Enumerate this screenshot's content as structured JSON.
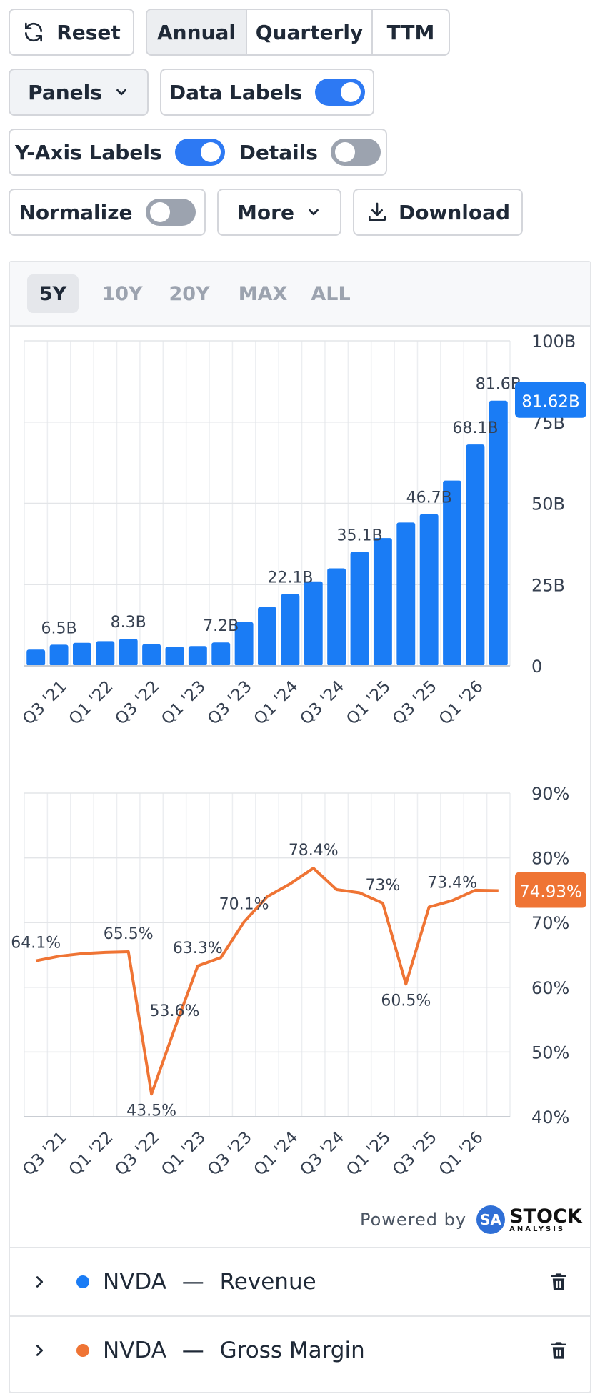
{
  "toolbar": {
    "reset_label": "Reset",
    "period_options": [
      "Annual",
      "Quarterly",
      "TTM"
    ],
    "panels_label": "Panels",
    "data_labels_label": "Data Labels",
    "data_labels_on": true,
    "y_axis_labels_label": "Y-Axis Labels",
    "y_axis_labels_on": true,
    "details_label": "Details",
    "details_on": false,
    "normalize_label": "Normalize",
    "normalize_on": false,
    "more_label": "More",
    "download_label": "Download"
  },
  "ranges": [
    "5Y",
    "10Y",
    "20Y",
    "MAX",
    "ALL"
  ],
  "active_range": "5Y",
  "powered_by": "Powered by",
  "brand": {
    "badge": "SA",
    "name": "STOCK",
    "sub": "ANALYSIS"
  },
  "legend": [
    {
      "ticker": "NVDA",
      "sep": "—",
      "metric": "Revenue",
      "color": "#1a7cf5"
    },
    {
      "ticker": "NVDA",
      "sep": "—",
      "metric": "Gross Margin",
      "color": "#ef7434"
    }
  ],
  "chart_data": [
    {
      "type": "bar",
      "series_name": "Revenue",
      "color": "#1a7cf5",
      "categories": [
        "Q2 '21",
        "Q3 '21",
        "Q4 '21",
        "Q1 '22",
        "Q2 '22",
        "Q3 '22",
        "Q4 '22",
        "Q1 '23",
        "Q2 '23",
        "Q3 '23",
        "Q4 '23",
        "Q1 '24",
        "Q2 '24",
        "Q3 '24",
        "Q4 '24",
        "Q1 '25",
        "Q2 '25",
        "Q3 '25",
        "Q4 '25",
        "Q1 '26",
        "Q2 '26"
      ],
      "values": [
        5.0,
        6.5,
        7.1,
        7.6,
        8.3,
        6.7,
        5.9,
        6.1,
        7.2,
        13.5,
        18.1,
        22.1,
        26.0,
        30.0,
        35.1,
        39.3,
        44.1,
        46.7,
        57.0,
        68.1,
        81.6
      ],
      "x_tick_labels": [
        "Q3 '21",
        "Q1 '22",
        "Q3 '22",
        "Q1 '23",
        "Q3 '23",
        "Q1 '24",
        "Q3 '24",
        "Q1 '25",
        "Q3 '25",
        "Q1 '26"
      ],
      "y_ticks": [
        "0",
        "25B",
        "50B",
        "75B",
        "100B"
      ],
      "ylim": [
        0,
        100
      ],
      "data_labels": [
        {
          "index": 1,
          "text": "6.5B"
        },
        {
          "index": 4,
          "text": "8.3B"
        },
        {
          "index": 8,
          "text": "7.2B"
        },
        {
          "index": 11,
          "text": "22.1B"
        },
        {
          "index": 14,
          "text": "35.1B"
        },
        {
          "index": 17,
          "text": "46.7B"
        },
        {
          "index": 19,
          "text": "68.1B"
        },
        {
          "index": 20,
          "text": "81.6B"
        }
      ],
      "last_value_badge": "81.62B",
      "grid": true
    },
    {
      "type": "line",
      "series_name": "Gross Margin",
      "color": "#ef7434",
      "categories": [
        "Q2 '21",
        "Q3 '21",
        "Q4 '21",
        "Q1 '22",
        "Q2 '22",
        "Q3 '22",
        "Q4 '22",
        "Q1 '23",
        "Q2 '23",
        "Q3 '23",
        "Q4 '23",
        "Q1 '24",
        "Q2 '24",
        "Q3 '24",
        "Q4 '24",
        "Q1 '25",
        "Q2 '25",
        "Q3 '25",
        "Q4 '25",
        "Q1 '26",
        "Q2 '26"
      ],
      "values": [
        64.1,
        64.8,
        65.2,
        65.4,
        65.5,
        43.5,
        53.6,
        63.3,
        64.6,
        70.1,
        74.0,
        76.0,
        78.4,
        75.1,
        74.6,
        73.0,
        60.5,
        72.4,
        73.4,
        75.0,
        74.93
      ],
      "x_tick_labels": [
        "Q3 '21",
        "Q1 '22",
        "Q3 '22",
        "Q1 '23",
        "Q3 '23",
        "Q1 '24",
        "Q3 '24",
        "Q1 '25",
        "Q3 '25",
        "Q1 '26"
      ],
      "y_ticks": [
        "40%",
        "50%",
        "60%",
        "70%",
        "80%",
        "90%"
      ],
      "ylim": [
        40,
        90
      ],
      "data_labels": [
        {
          "index": 0,
          "text": "64.1%"
        },
        {
          "index": 4,
          "text": "65.5%"
        },
        {
          "index": 5,
          "text": "43.5%"
        },
        {
          "index": 6,
          "text": "53.6%"
        },
        {
          "index": 7,
          "text": "63.3%"
        },
        {
          "index": 9,
          "text": "70.1%"
        },
        {
          "index": 12,
          "text": "78.4%"
        },
        {
          "index": 15,
          "text": "73%"
        },
        {
          "index": 16,
          "text": "60.5%"
        },
        {
          "index": 18,
          "text": "73.4%"
        }
      ],
      "last_value_badge": "74.93%",
      "grid": true
    }
  ]
}
